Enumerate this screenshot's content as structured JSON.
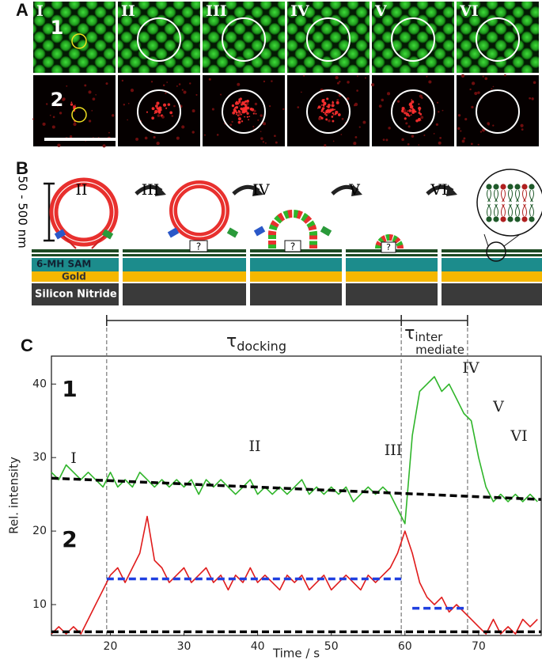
{
  "panel_a": {
    "label": "A",
    "columns": [
      "I",
      "II",
      "III",
      "IV",
      "V",
      "VI"
    ],
    "rows": [
      "1",
      "2"
    ]
  },
  "panel_b": {
    "label": "B",
    "stages": [
      "II",
      "III",
      "IV",
      "V",
      "VI"
    ],
    "scale": "50 - 500 nm",
    "layers": [
      "6-MH SAM",
      "Gold",
      "Silicon Nitride"
    ],
    "unknown": "?"
  },
  "chart_data": {
    "type": "line",
    "panel_label": "C",
    "x_label": "Time / s",
    "y_label": "Rel. intensity",
    "xlim": [
      12,
      78.5
    ],
    "ylim": [
      5.8,
      43.8
    ],
    "xticks": [
      20,
      30,
      40,
      50,
      60,
      70
    ],
    "yticks": [
      10,
      20,
      30,
      40
    ],
    "x": [
      12,
      13,
      14,
      15,
      16,
      17,
      18,
      19,
      20,
      21,
      22,
      23,
      24,
      25,
      26,
      27,
      28,
      29,
      30,
      31,
      32,
      33,
      34,
      35,
      36,
      37,
      38,
      39,
      40,
      41,
      42,
      43,
      44,
      45,
      46,
      47,
      48,
      49,
      50,
      51,
      52,
      53,
      54,
      55,
      56,
      57,
      58,
      59,
      60,
      61,
      62,
      63,
      64,
      65,
      66,
      67,
      68,
      69,
      70,
      71,
      72,
      73,
      74,
      75,
      76,
      77,
      78
    ],
    "series": [
      {
        "color": "#2fb52a",
        "values": [
          28,
          27,
          29,
          28,
          27,
          28,
          27,
          26,
          28,
          26,
          27,
          26,
          28,
          27,
          26,
          27,
          26,
          27,
          26,
          27,
          25,
          27,
          26,
          27,
          26,
          25,
          26,
          27,
          25,
          26,
          25,
          26,
          25,
          26,
          27,
          25,
          26,
          25,
          26,
          25,
          26,
          24,
          25,
          26,
          25,
          26,
          25,
          23,
          21,
          33,
          39,
          40,
          41,
          39,
          40,
          38,
          36,
          35,
          30,
          26,
          24,
          25,
          24,
          25,
          24,
          25,
          24
        ]
      },
      {
        "color": "#e01b1b",
        "values": [
          6,
          7,
          6,
          7,
          6,
          8,
          10,
          12,
          14,
          15,
          13,
          15,
          17,
          22,
          16,
          15,
          13,
          14,
          15,
          13,
          14,
          15,
          13,
          14,
          12,
          14,
          13,
          15,
          13,
          14,
          13,
          12,
          14,
          13,
          14,
          12,
          13,
          14,
          12,
          13,
          14,
          13,
          12,
          14,
          13,
          14,
          15,
          17,
          20,
          17,
          13,
          11,
          10,
          11,
          9,
          10,
          9,
          8,
          7,
          6,
          8,
          6,
          7,
          6,
          8,
          7,
          8
        ]
      }
    ],
    "fit_lines": [
      {
        "color": "#000000",
        "x": [
          12,
          78.5
        ],
        "values": [
          27.2,
          24.3
        ]
      },
      {
        "color": "#000000",
        "x": [
          12,
          78.5
        ],
        "values": [
          6.3,
          6.3
        ]
      },
      {
        "color": "#1f3fe0",
        "x": [
          19.5,
          59.5
        ],
        "values": [
          13.5,
          13.5
        ]
      },
      {
        "color": "#1f3fe0",
        "x": [
          61,
          68.5
        ],
        "values": [
          9.5,
          9.5
        ]
      }
    ],
    "event_lines": [
      19.5,
      59.5,
      68.5
    ],
    "intervals": [
      {
        "symbol": "τ",
        "subscript": "docking"
      },
      {
        "symbol": "τ",
        "subscript": [
          "inter",
          "mediate"
        ]
      }
    ],
    "stage_labels": [
      "I",
      "II",
      "III",
      "IV",
      "V",
      "VI"
    ],
    "trace_labels": [
      "1",
      "2"
    ]
  }
}
